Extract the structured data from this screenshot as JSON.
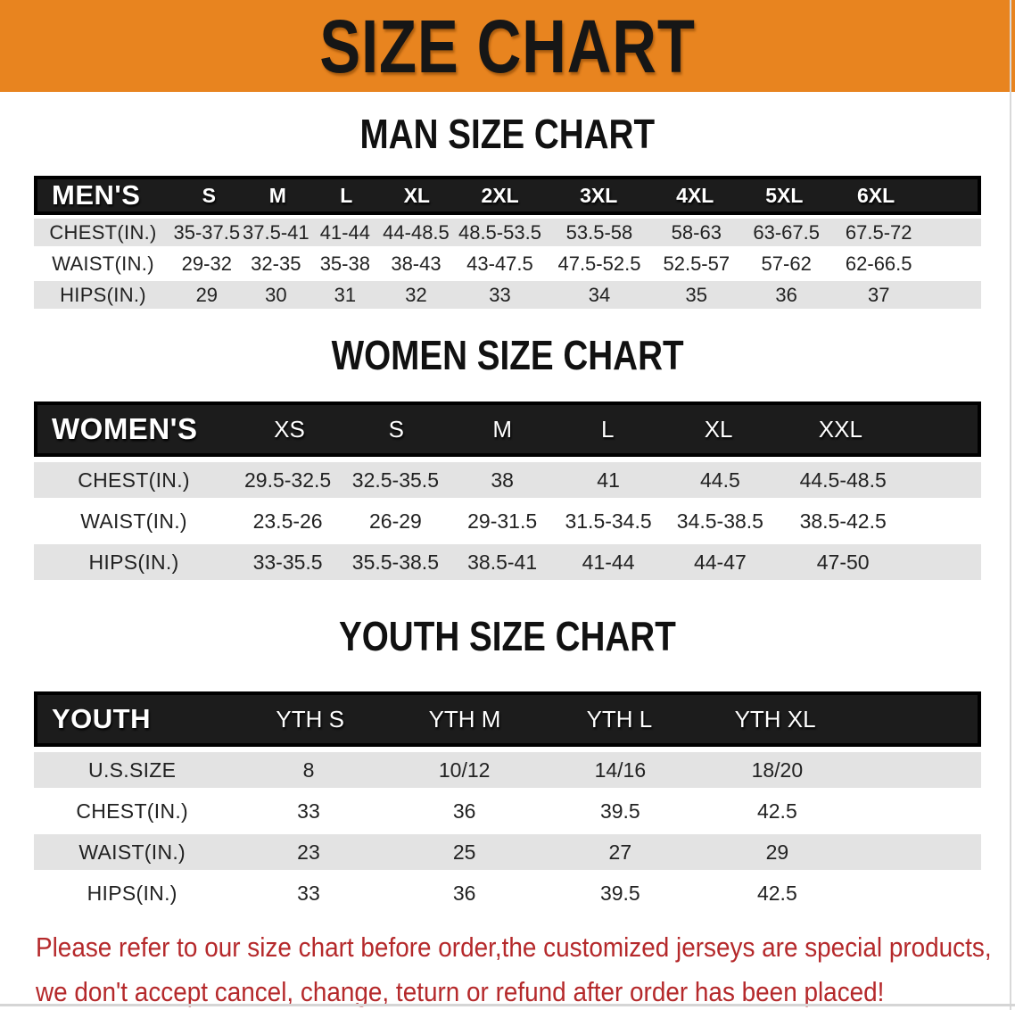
{
  "colors": {
    "banner_bg": "#E8841F",
    "band_bg": "#1C1C1C",
    "row_gray": "#E3E3E3",
    "disclaimer_red": "#B5292B"
  },
  "banner": {
    "title": "SIZE CHART"
  },
  "men": {
    "heading": "MAN SIZE CHART",
    "label": "MEN'S",
    "columns": [
      "S",
      "M",
      "L",
      "XL",
      "2XL",
      "3XL",
      "4XL",
      "5XL",
      "6XL"
    ],
    "rows": [
      {
        "label": "CHEST(IN.)",
        "values": [
          "35-37.5",
          "37.5-41",
          "41-44",
          "44-48.5",
          "48.5-53.5",
          "53.5-58",
          "58-63",
          "63-67.5",
          "67.5-72"
        ]
      },
      {
        "label": "WAIST(IN.)",
        "values": [
          "29-32",
          "32-35",
          "35-38",
          "38-43",
          "43-47.5",
          "47.5-52.5",
          "52.5-57",
          "57-62",
          "62-66.5"
        ]
      },
      {
        "label": "HIPS(IN.)",
        "values": [
          "29",
          "30",
          "31",
          "32",
          "33",
          "34",
          "35",
          "36",
          "37"
        ]
      }
    ]
  },
  "women": {
    "heading": "WOMEN SIZE CHART",
    "label": "WOMEN'S",
    "columns": [
      "XS",
      "S",
      "M",
      "L",
      "XL",
      "XXL"
    ],
    "rows": [
      {
        "label": "CHEST(IN.)",
        "values": [
          "29.5-32.5",
          "32.5-35.5",
          "38",
          "41",
          "44.5",
          "44.5-48.5"
        ]
      },
      {
        "label": "WAIST(IN.)",
        "values": [
          "23.5-26",
          "26-29",
          "29-31.5",
          "31.5-34.5",
          "34.5-38.5",
          "38.5-42.5"
        ]
      },
      {
        "label": "HIPS(IN.)",
        "values": [
          "33-35.5",
          "35.5-38.5",
          "38.5-41",
          "41-44",
          "44-47",
          "47-50"
        ]
      }
    ]
  },
  "youth": {
    "heading": "YOUTH SIZE CHART",
    "label": "YOUTH",
    "columns": [
      "YTH S",
      "YTH M",
      "YTH L",
      "YTH XL"
    ],
    "rows": [
      {
        "label": "U.S.SIZE",
        "values": [
          "8",
          "10/12",
          "14/16",
          "18/20"
        ]
      },
      {
        "label": "CHEST(IN.)",
        "values": [
          "33",
          "36",
          "39.5",
          "42.5"
        ]
      },
      {
        "label": "WAIST(IN.)",
        "values": [
          "23",
          "25",
          "27",
          "29"
        ]
      },
      {
        "label": "HIPS(IN.)",
        "values": [
          "33",
          "36",
          "39.5",
          "42.5"
        ]
      }
    ]
  },
  "disclaimer": {
    "line1": "Please refer to our size chart before order,the customized jerseys are special products,",
    "line2": "we don't accept cancel, change, teturn or refund after order has been placed!"
  }
}
